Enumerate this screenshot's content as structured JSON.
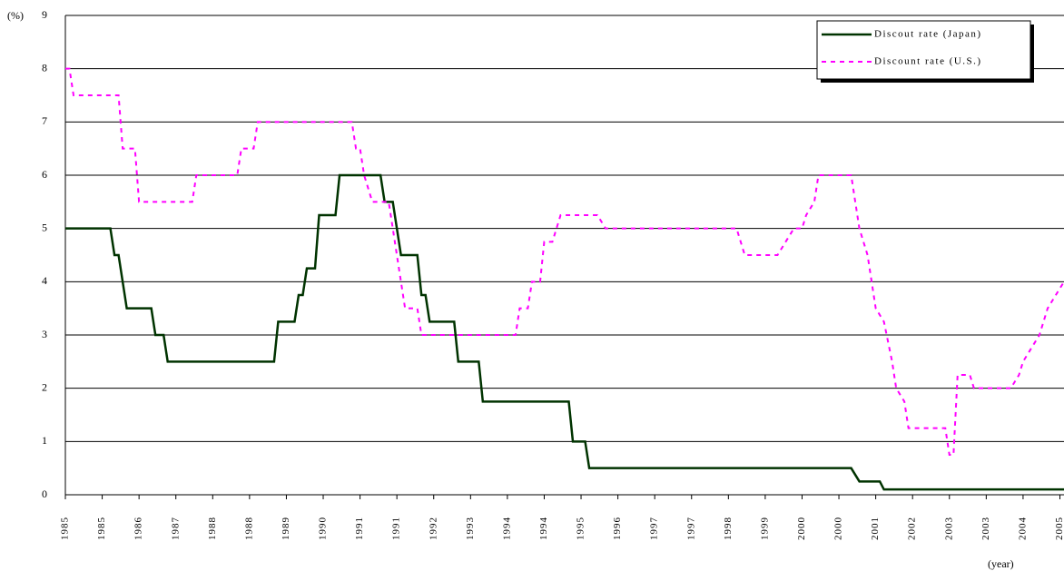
{
  "chart_data": {
    "type": "line",
    "y_label": "(%)",
    "x_label": "(year)",
    "xlim": [
      0,
      244
    ],
    "ylim": [
      0,
      9
    ],
    "yticks": [
      0,
      1,
      2,
      3,
      4,
      5,
      6,
      7,
      8,
      9
    ],
    "xticks": [
      {
        "value": 0,
        "label": "1985"
      },
      {
        "value": 9,
        "label": "1985"
      },
      {
        "value": 18,
        "label": "1986"
      },
      {
        "value": 27,
        "label": "1987"
      },
      {
        "value": 36,
        "label": "1988"
      },
      {
        "value": 45,
        "label": "1988"
      },
      {
        "value": 54,
        "label": "1989"
      },
      {
        "value": 63,
        "label": "1990"
      },
      {
        "value": 72,
        "label": "1991"
      },
      {
        "value": 81,
        "label": "1991"
      },
      {
        "value": 90,
        "label": "1992"
      },
      {
        "value": 99,
        "label": "1993"
      },
      {
        "value": 108,
        "label": "1994"
      },
      {
        "value": 117,
        "label": "1994"
      },
      {
        "value": 126,
        "label": "1995"
      },
      {
        "value": 135,
        "label": "1996"
      },
      {
        "value": 144,
        "label": "1997"
      },
      {
        "value": 153,
        "label": "1997"
      },
      {
        "value": 162,
        "label": "1998"
      },
      {
        "value": 171,
        "label": "1999"
      },
      {
        "value": 180,
        "label": "2000"
      },
      {
        "value": 189,
        "label": "2000"
      },
      {
        "value": 198,
        "label": "2001"
      },
      {
        "value": 207,
        "label": "2002"
      },
      {
        "value": 216,
        "label": "2003"
      },
      {
        "value": 225,
        "label": "2003"
      },
      {
        "value": 234,
        "label": "2004"
      },
      {
        "value": 243,
        "label": "2005"
      }
    ],
    "grid": true,
    "legend": "upper right",
    "series": [
      {
        "name": "Discout rate (Japan)",
        "color": "#003300",
        "line_style": "solid",
        "x": [
          0,
          11,
          12,
          13,
          15,
          21,
          22,
          24,
          25,
          51,
          52,
          56,
          57,
          58,
          59,
          61,
          62,
          66,
          67,
          77,
          78,
          80,
          82,
          86,
          87,
          88,
          89,
          95,
          96,
          101,
          102,
          123,
          124,
          127,
          128,
          192,
          194,
          199,
          200,
          244
        ],
        "values": [
          5,
          5,
          4.5,
          4.5,
          3.5,
          3.5,
          3,
          3,
          2.5,
          2.5,
          3.25,
          3.25,
          3.75,
          3.75,
          4.25,
          4.25,
          5.25,
          5.25,
          6,
          6,
          5.5,
          5.5,
          4.5,
          4.5,
          3.75,
          3.75,
          3.25,
          3.25,
          2.5,
          2.5,
          1.75,
          1.75,
          1,
          1,
          0.5,
          0.5,
          0.25,
          0.25,
          0.1,
          0.1
        ]
      },
      {
        "name": "Discount rate (U.S.)",
        "color": "#ff00ff",
        "line_style": "dashed",
        "x": [
          0,
          1,
          2,
          13,
          14,
          17,
          18,
          31,
          32,
          42,
          43,
          46,
          47,
          70,
          71,
          72,
          73,
          75,
          79,
          80,
          82,
          83,
          86,
          87,
          110,
          111,
          113,
          114,
          116,
          117,
          119,
          121,
          130,
          132,
          164,
          165,
          166,
          174,
          176,
          178,
          180,
          181,
          183,
          184,
          192,
          193,
          194,
          196,
          198,
          200,
          202,
          203,
          205,
          206,
          215,
          216,
          217,
          218,
          221,
          222,
          231,
          233,
          234,
          236,
          238,
          240,
          242,
          244
        ],
        "values": [
          8,
          8,
          7.5,
          7.5,
          6.5,
          6.5,
          5.5,
          5.5,
          6,
          6,
          6.5,
          6.5,
          7,
          7,
          6.5,
          6.5,
          6,
          5.5,
          5.5,
          5,
          4,
          3.5,
          3.5,
          3,
          3,
          3.5,
          3.5,
          4,
          4,
          4.75,
          4.75,
          5.25,
          5.25,
          5,
          5,
          4.75,
          4.5,
          4.5,
          4.75,
          5,
          5,
          5.25,
          5.5,
          6,
          6,
          5.5,
          5,
          4.5,
          3.5,
          3.25,
          2.5,
          2,
          1.75,
          1.25,
          1.25,
          0.75,
          0.75,
          2.25,
          2.25,
          2,
          2,
          2.25,
          2.5,
          2.75,
          3,
          3.5,
          3.75,
          4
        ]
      }
    ]
  }
}
